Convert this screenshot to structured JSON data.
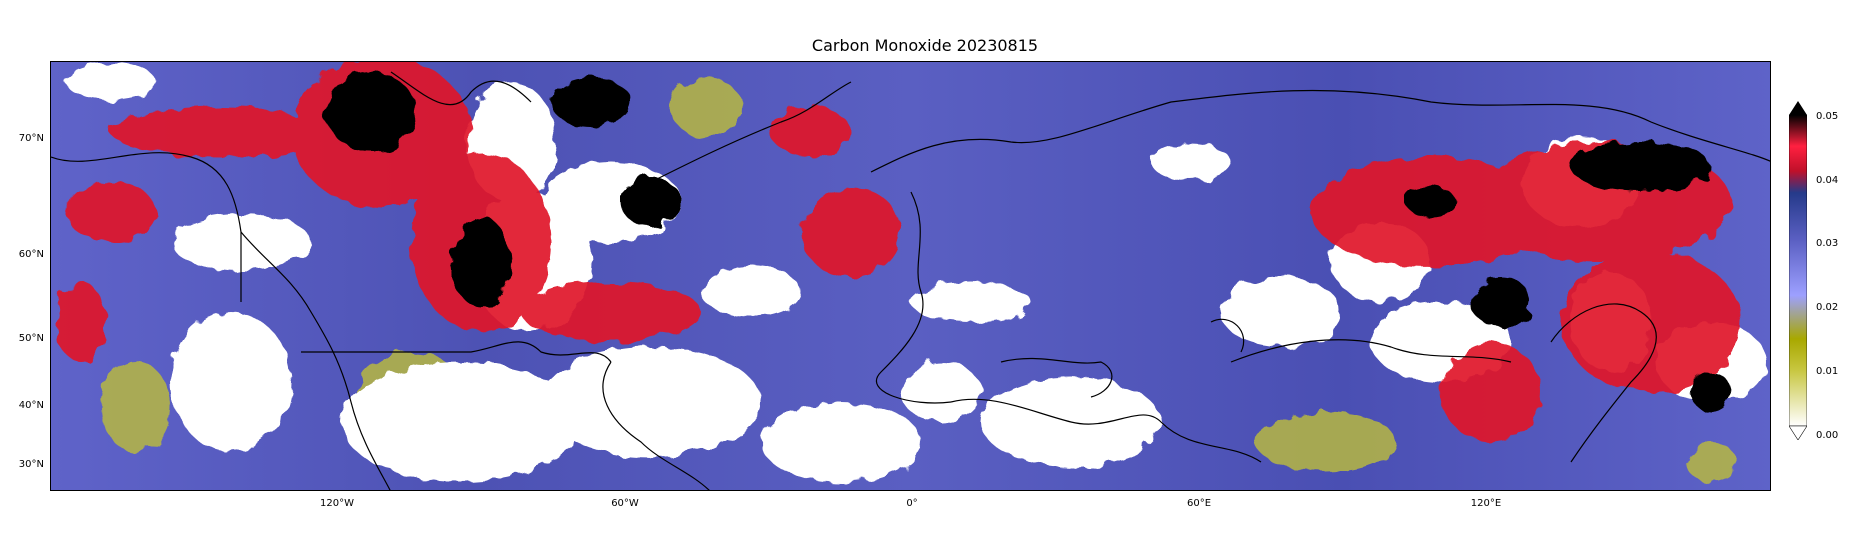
{
  "figure": {
    "title": "Carbon Monoxide 20230815"
  },
  "map": {
    "latitude_ticks": [
      "70°N",
      "60°N",
      "50°N",
      "40°N",
      "30°N"
    ],
    "longitude_ticks": [
      "120°W",
      "60°W",
      "0°",
      "60°E",
      "120°E"
    ],
    "projection_note": "",
    "colors": {
      "background_field": "#5a5fc6",
      "high": "#e0162b",
      "very_high": "#000000",
      "low": "#b8b832",
      "cloud_mask": "#ffffff",
      "coastline": "#000000"
    }
  },
  "colorbar": {
    "ticks": [
      "0.05",
      "0.04",
      "0.03",
      "0.02",
      "0.01",
      "0.00"
    ],
    "range": [
      0.0,
      0.05
    ],
    "extend": "both",
    "stops": [
      "#ffffff",
      "#b0b000",
      "#9da0ff",
      "#4a4fb0",
      "#253a8a",
      "#d0102a",
      "#ff2040",
      "#000000"
    ]
  }
}
